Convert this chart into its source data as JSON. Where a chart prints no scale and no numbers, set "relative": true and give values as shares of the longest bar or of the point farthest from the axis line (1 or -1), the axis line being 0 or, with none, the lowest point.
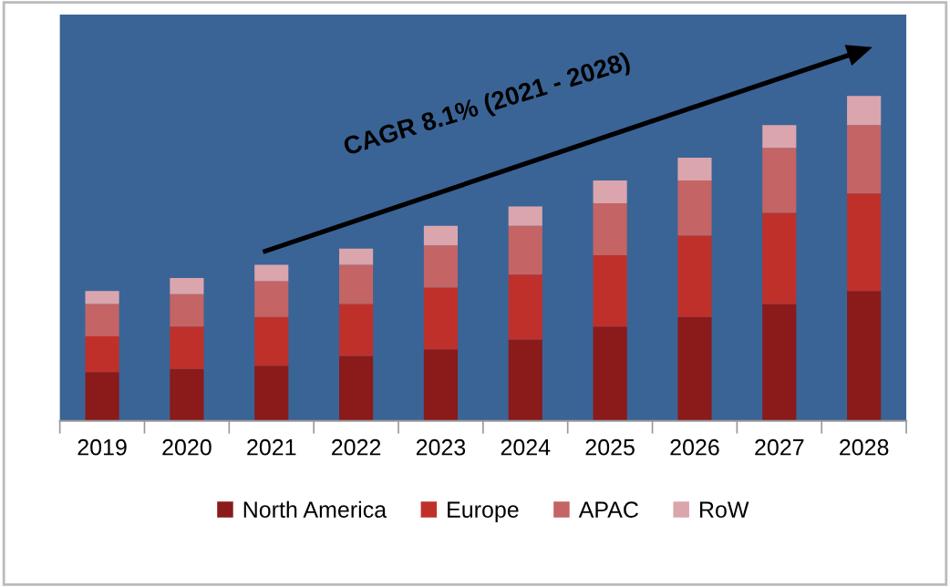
{
  "chart_data": {
    "type": "bar",
    "stacked": true,
    "relative": true,
    "categories": [
      "2019",
      "2020",
      "2021",
      "2022",
      "2023",
      "2024",
      "2025",
      "2026",
      "2027",
      "2028"
    ],
    "series": [
      {
        "name": "North America",
        "color": "#8b1a1a",
        "values": [
          0.15,
          0.16,
          0.17,
          0.2,
          0.22,
          0.25,
          0.29,
          0.32,
          0.36,
          0.4
        ]
      },
      {
        "name": "Europe",
        "color": "#c0302b",
        "values": [
          0.11,
          0.13,
          0.15,
          0.16,
          0.19,
          0.2,
          0.22,
          0.25,
          0.28,
          0.3
        ]
      },
      {
        "name": "APAC",
        "color": "#c46464",
        "values": [
          0.1,
          0.1,
          0.11,
          0.12,
          0.13,
          0.15,
          0.16,
          0.17,
          0.2,
          0.21
        ]
      },
      {
        "name": "RoW",
        "color": "#dba5ad",
        "values": [
          0.04,
          0.05,
          0.05,
          0.05,
          0.06,
          0.06,
          0.07,
          0.07,
          0.07,
          0.09
        ]
      }
    ],
    "annotations": [
      "CAGR 8.1% (2021 - 2028)"
    ],
    "legend": "bottom",
    "grid": false
  }
}
